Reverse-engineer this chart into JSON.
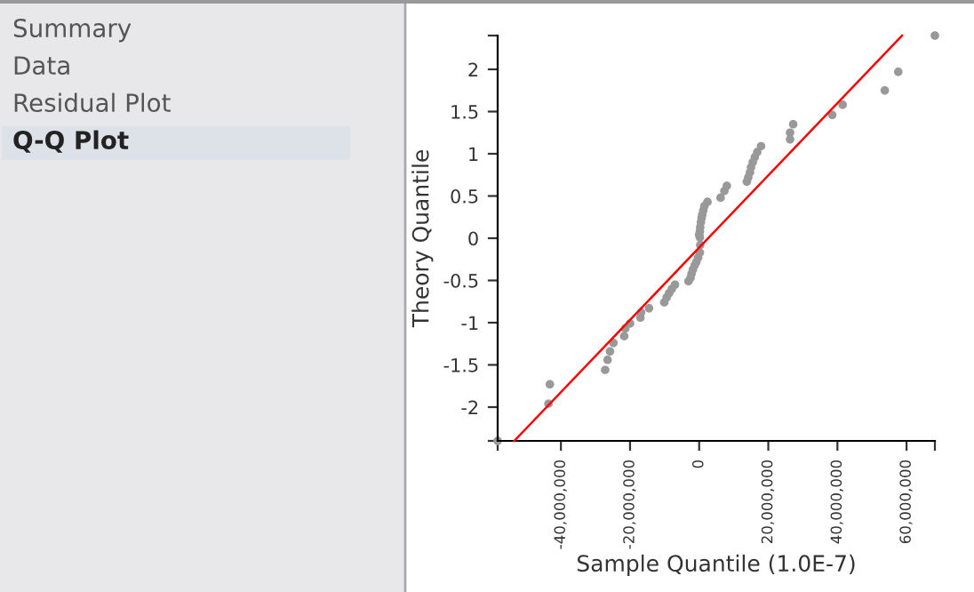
{
  "chart_data": {
    "type": "scatter",
    "xlabel": "Sample Quantile (1.0E-7)",
    "ylabel": "Theory Quantile",
    "annotations": [
      "Summary",
      "Data",
      "Residual Plot",
      "Q-Q Plot"
    ],
    "series": [
      {
        "color": "#999999",
        "marker": "circle",
        "x": [
          -58300000,
          -43600000,
          -43200000,
          -27200000,
          -26500000,
          -25800000,
          -24800000,
          -21700000,
          -21400000,
          -20000000,
          -17000000,
          -16800000,
          -14500000,
          -10100000,
          -9400000,
          -8700000,
          -7900000,
          -7000000,
          -3100000,
          -2500000,
          -2200000,
          -1800000,
          -1300000,
          -800000,
          -300000,
          200000,
          300000,
          200000,
          0,
          200000,
          300000,
          500000,
          700000,
          900000,
          1200000,
          1500000,
          2400000,
          6200000,
          7300000,
          8000000,
          13800000,
          14200000,
          14700000,
          15000000,
          15500000,
          16100000,
          16800000,
          17900000,
          26300000,
          26300000,
          27200000,
          38500000,
          41500000,
          53700000,
          57600000,
          68200000
        ],
        "values": [
          -2.4,
          -1.96,
          -1.73,
          -1.56,
          -1.44,
          -1.34,
          -1.24,
          -1.16,
          -1.07,
          -1.01,
          -0.94,
          -0.88,
          -0.83,
          -0.76,
          -0.7,
          -0.65,
          -0.6,
          -0.55,
          -0.51,
          -0.47,
          -0.42,
          -0.37,
          -0.32,
          -0.28,
          -0.23,
          -0.17,
          -0.08,
          0.01,
          0.04,
          0.08,
          0.13,
          0.19,
          0.24,
          0.28,
          0.33,
          0.38,
          0.43,
          0.48,
          0.56,
          0.62,
          0.67,
          0.72,
          0.78,
          0.84,
          0.9,
          0.96,
          1.02,
          1.09,
          1.17,
          1.25,
          1.35,
          1.46,
          1.58,
          1.75,
          1.97,
          2.4
        ]
      },
      {
        "type": "line",
        "color": "#ff0000",
        "line_style": "solid",
        "marker": "none",
        "x": [
          -53500000,
          58700000
        ],
        "values": [
          -2.4,
          2.4
        ]
      }
    ],
    "xlim": [
      -58300000,
      68200000
    ],
    "ylim": [
      -2.4,
      2.4
    ],
    "xticks": [
      {
        "value": -58300000,
        "label": null
      },
      {
        "value": -40000000,
        "label": "-40,000,000"
      },
      {
        "value": -20000000,
        "label": "-20,000,000"
      },
      0,
      {
        "value": 20000000,
        "label": "20,000,000"
      },
      {
        "value": 40000000,
        "label": "40,000,000"
      },
      {
        "value": 60000000,
        "label": "60,000,000"
      },
      {
        "value": 68200000,
        "label": null
      }
    ],
    "yticks": [
      {
        "value": -2.4,
        "label": null
      },
      -2,
      -1.5,
      -1,
      -0.5,
      0,
      0.5,
      1,
      1.5,
      2,
      {
        "value": 2.4,
        "label": null
      }
    ],
    "grid": false,
    "legend": false
  }
}
